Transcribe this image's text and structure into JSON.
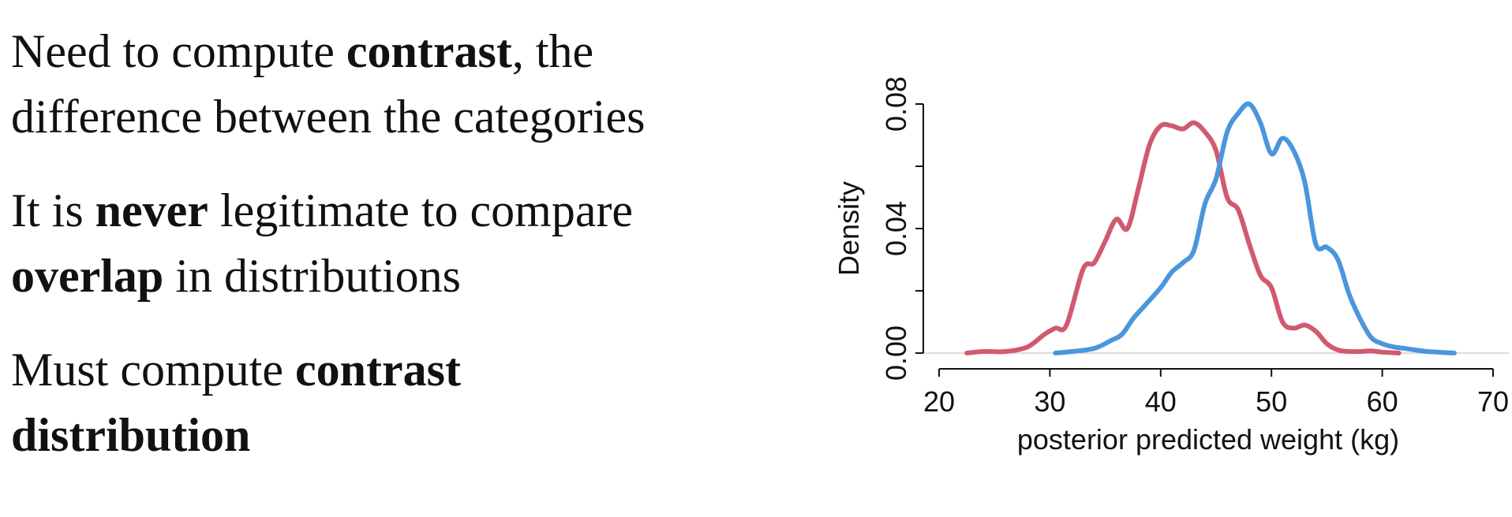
{
  "text": {
    "p1": [
      "Need to compute ",
      "contrast",
      ", the",
      "difference between the categories"
    ],
    "p2": [
      "It is ",
      "never",
      " legitimate to compare",
      "overlap",
      " in distributions"
    ],
    "p3": [
      "Must compute ",
      "contrast",
      "distribution"
    ]
  },
  "chart_data": {
    "type": "line",
    "xlabel": "posterior predicted weight (kg)",
    "ylabel": "Density",
    "xticks": [
      20,
      30,
      40,
      50,
      60,
      70
    ],
    "yticks": [
      "0.00",
      "0.04",
      "0.08"
    ],
    "xlim": [
      20,
      70
    ],
    "ylim": [
      0,
      0.08
    ],
    "grid": false,
    "colors": {
      "red": "#d05a6e",
      "blue": "#4a96dc"
    },
    "series": [
      {
        "color": "red",
        "x": [
          22.5,
          24,
          26,
          28,
          29.5,
          30.5,
          31.5,
          33,
          34,
          35,
          36,
          37,
          38,
          39,
          40,
          41,
          42,
          43,
          44,
          45,
          46,
          47,
          48,
          49,
          50,
          51,
          52,
          53,
          54,
          55,
          56,
          57,
          58,
          59,
          60,
          61.5
        ],
        "values": [
          0.0,
          0.0005,
          0.0005,
          0.002,
          0.006,
          0.008,
          0.009,
          0.027,
          0.029,
          0.036,
          0.043,
          0.04,
          0.053,
          0.067,
          0.073,
          0.073,
          0.072,
          0.074,
          0.071,
          0.065,
          0.05,
          0.046,
          0.035,
          0.025,
          0.021,
          0.01,
          0.008,
          0.009,
          0.007,
          0.003,
          0.001,
          0.0005,
          0.0005,
          0.0007,
          0.0003,
          0.0
        ]
      },
      {
        "color": "blue",
        "x": [
          30.5,
          32,
          34,
          35.5,
          36.5,
          37.5,
          38.5,
          40,
          41,
          42,
          43,
          44,
          45,
          46,
          47,
          48,
          49,
          50,
          51,
          52,
          53,
          54,
          55,
          56,
          57,
          58,
          59,
          60,
          61,
          62,
          63,
          64,
          65,
          66.5
        ],
        "values": [
          0.0,
          0.0005,
          0.0015,
          0.004,
          0.006,
          0.011,
          0.015,
          0.021,
          0.026,
          0.029,
          0.033,
          0.048,
          0.056,
          0.071,
          0.077,
          0.08,
          0.074,
          0.064,
          0.069,
          0.065,
          0.055,
          0.035,
          0.034,
          0.03,
          0.019,
          0.011,
          0.005,
          0.003,
          0.002,
          0.0015,
          0.001,
          0.0005,
          0.0003,
          0.0
        ]
      }
    ]
  }
}
